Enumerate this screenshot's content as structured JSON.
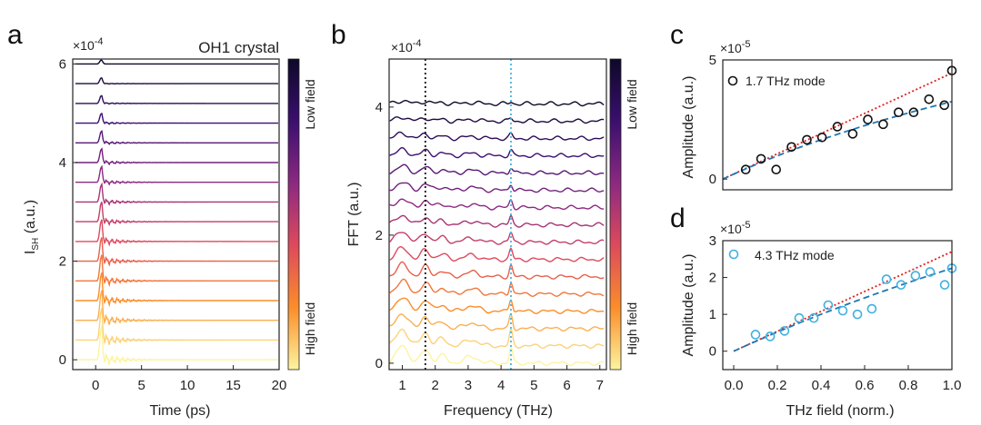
{
  "panels": {
    "a": {
      "letter": "a",
      "annotation": "OH1 crystal",
      "annotation_color": "#4a9a0e",
      "exponent": "×10-4",
      "ylabel": "I",
      "ylabel_sub": "SH",
      "ylabel_rest": "(a.u.)",
      "xlabel": "Time (ps)",
      "colorbar_top": "Low field",
      "colorbar_bottom": "High field"
    },
    "b": {
      "letter": "b",
      "exponent": "×10-4",
      "ylabel": "FFT (a.u.)",
      "xlabel": "Frequency (THz)",
      "colorbar_top": "Low field",
      "colorbar_bottom": "High field",
      "marker_lines": [
        {
          "x": 1.7,
          "color": "#111111"
        },
        {
          "x": 4.3,
          "color": "#4ab3e0"
        }
      ]
    },
    "c": {
      "letter": "c",
      "exponent": "×10-5",
      "ylabel": "Amplitude (a.u.)",
      "legend": "1.7 THz mode",
      "marker_color": "#111111"
    },
    "d": {
      "letter": "d",
      "exponent": "×10-5",
      "ylabel": "Amplitude (a.u.)",
      "xlabel": "THz field (norm.)",
      "legend": "4.3 THz mode",
      "marker_color": "#3fb0df"
    }
  },
  "chart_data": [
    {
      "id": "a",
      "type": "line",
      "title": "OH1 crystal",
      "xlabel": "Time (ps)",
      "ylabel": "ISH (a.u.)",
      "exponent": "1e-4",
      "xlim": [
        -2.5,
        20
      ],
      "ylim": [
        -0.2,
        6.1
      ],
      "xticks": [
        0,
        5,
        10,
        15,
        20
      ],
      "yticks": [
        0,
        2,
        4,
        6
      ],
      "series_count": 16,
      "baselines": [
        0.0,
        0.4,
        0.8,
        1.2,
        1.6,
        2.0,
        2.4,
        2.8,
        3.2,
        3.6,
        4.0,
        4.4,
        4.8,
        5.2,
        5.6,
        6.0
      ],
      "peak_time_ps": 0.6,
      "colorbar": [
        "High field",
        "Low field"
      ]
    },
    {
      "id": "b",
      "type": "line",
      "xlabel": "Frequency (THz)",
      "ylabel": "FFT (a.u.)",
      "exponent": "1e-4",
      "xlim": [
        0.6,
        7.2
      ],
      "ylim": [
        -0.1,
        4.75
      ],
      "xticks": [
        1,
        2,
        3,
        4,
        5,
        6,
        7
      ],
      "yticks": [
        0,
        2,
        4
      ],
      "series_count": 16,
      "baselines": [
        0.0,
        0.27,
        0.54,
        0.81,
        1.08,
        1.35,
        1.62,
        1.89,
        2.16,
        2.43,
        2.7,
        2.97,
        3.24,
        3.51,
        3.78,
        4.05
      ],
      "modes_THz": [
        1.7,
        4.3
      ],
      "colorbar": [
        "High field",
        "Low field"
      ]
    },
    {
      "id": "c",
      "type": "scatter",
      "legend": "1.7 THz mode",
      "ylabel": "Amplitude (a.u.)",
      "exponent": "1e-5",
      "xlim": [
        0,
        1
      ],
      "ylim": [
        -0.45,
        5
      ],
      "yticks": [
        0,
        5
      ],
      "x": [
        0.1,
        0.167,
        0.233,
        0.3,
        0.367,
        0.433,
        0.5,
        0.567,
        0.633,
        0.7,
        0.767,
        0.833,
        0.9,
        0.967,
        1.0
      ],
      "y": [
        0.4,
        0.85,
        0.4,
        1.35,
        1.65,
        1.75,
        2.2,
        1.9,
        2.5,
        2.3,
        2.8,
        2.8,
        3.35,
        3.1,
        4.55
      ],
      "linear_fit": {
        "style": "red dotted",
        "y_at": [
          [
            0,
            0
          ],
          [
            1,
            4.45
          ]
        ]
      },
      "saturation_fit": {
        "style": "blue dashed",
        "y_at": [
          [
            0,
            0
          ],
          [
            1,
            3.25
          ]
        ]
      }
    },
    {
      "id": "d",
      "type": "scatter",
      "legend": "4.3 THz mode",
      "xlabel": "THz field (norm.)",
      "ylabel": "Amplitude (a.u.)",
      "exponent": "1e-5",
      "xlim": [
        -0.05,
        1.0
      ],
      "ylim": [
        -0.5,
        3
      ],
      "xticks": [
        0.0,
        0.2,
        0.4,
        0.6,
        0.8,
        1.0
      ],
      "yticks": [
        0,
        1,
        2,
        3
      ],
      "x": [
        0.1,
        0.167,
        0.233,
        0.3,
        0.367,
        0.433,
        0.5,
        0.567,
        0.633,
        0.7,
        0.767,
        0.833,
        0.9,
        0.967,
        1.0
      ],
      "y": [
        0.45,
        0.4,
        0.55,
        0.9,
        0.9,
        1.25,
        1.1,
        1.0,
        1.15,
        1.95,
        1.8,
        2.05,
        2.15,
        1.8,
        2.25
      ],
      "linear_fit": {
        "style": "red dotted",
        "y_at": [
          [
            0,
            0
          ],
          [
            1,
            2.7
          ]
        ]
      },
      "saturation_fit": {
        "style": "blue dashed",
        "y_at": [
          [
            0,
            0
          ],
          [
            1,
            2.25
          ]
        ]
      }
    }
  ]
}
